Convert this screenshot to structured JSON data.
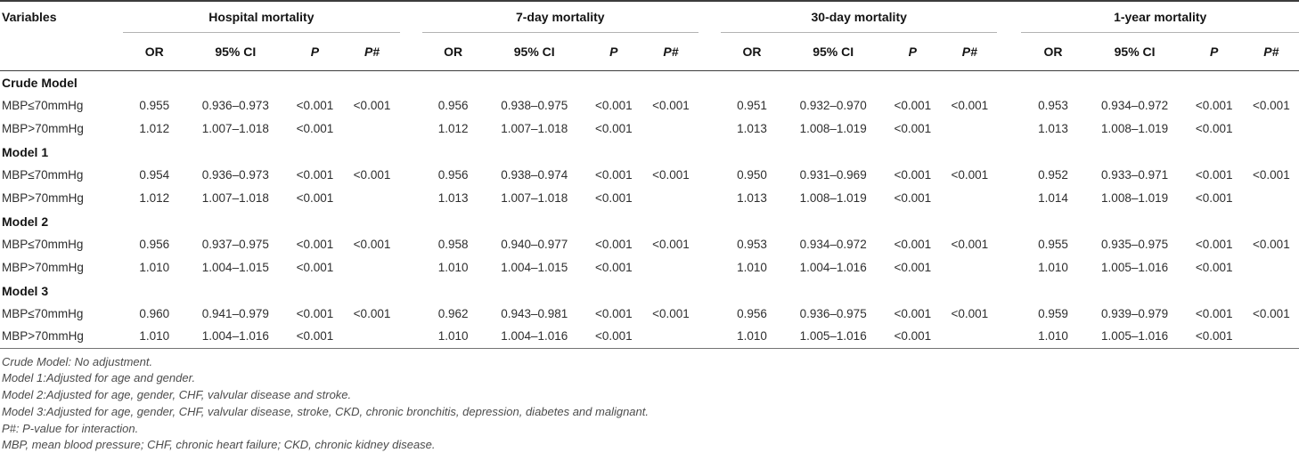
{
  "colors": {
    "rule_top": "#3c3c3c",
    "rule_header": "#3c3c3c",
    "rule_group_underline": "#b3b3b3",
    "rule_bottom": "#737373",
    "text": "#2e2e2e",
    "footnote_text": "#4c4c4c"
  },
  "table": {
    "variables_header": "Variables",
    "groups": [
      {
        "label": "Hospital mortality"
      },
      {
        "label": "7-day mortality"
      },
      {
        "label": "30-day mortality"
      },
      {
        "label": "1-year mortality"
      }
    ],
    "subheaders": [
      "OR",
      "95% CI",
      "P",
      "P#"
    ],
    "sections": [
      {
        "label": "Crude Model",
        "rows": [
          {
            "variable": "MBP≤70mmHg",
            "cells": [
              [
                "0.955",
                "0.936–0.973",
                "<0.001",
                "<0.001"
              ],
              [
                "0.956",
                "0.938–0.975",
                "<0.001",
                "<0.001"
              ],
              [
                "0.951",
                "0.932–0.970",
                "<0.001",
                "<0.001"
              ],
              [
                "0.953",
                "0.934–0.972",
                "<0.001",
                "<0.001"
              ]
            ]
          },
          {
            "variable": "MBP>70mmHg",
            "cells": [
              [
                "1.012",
                "1.007–1.018",
                "<0.001",
                ""
              ],
              [
                "1.012",
                "1.007–1.018",
                "<0.001",
                ""
              ],
              [
                "1.013",
                "1.008–1.019",
                "<0.001",
                ""
              ],
              [
                "1.013",
                "1.008–1.019",
                "<0.001",
                ""
              ]
            ]
          }
        ]
      },
      {
        "label": "Model 1",
        "rows": [
          {
            "variable": "MBP≤70mmHg",
            "cells": [
              [
                "0.954",
                "0.936–0.973",
                "<0.001",
                "<0.001"
              ],
              [
                "0.956",
                "0.938–0.974",
                "<0.001",
                "<0.001"
              ],
              [
                "0.950",
                "0.931–0.969",
                "<0.001",
                "<0.001"
              ],
              [
                "0.952",
                "0.933–0.971",
                "<0.001",
                "<0.001"
              ]
            ]
          },
          {
            "variable": "MBP>70mmHg",
            "cells": [
              [
                "1.012",
                "1.007–1.018",
                "<0.001",
                ""
              ],
              [
                "1.013",
                "1.007–1.018",
                "<0.001",
                ""
              ],
              [
                "1.013",
                "1.008–1.019",
                "<0.001",
                ""
              ],
              [
                "1.014",
                "1.008–1.019",
                "<0.001",
                ""
              ]
            ]
          }
        ]
      },
      {
        "label": "Model 2",
        "rows": [
          {
            "variable": "MBP≤70mmHg",
            "cells": [
              [
                "0.956",
                "0.937–0.975",
                "<0.001",
                "<0.001"
              ],
              [
                "0.958",
                "0.940–0.977",
                "<0.001",
                "<0.001"
              ],
              [
                "0.953",
                "0.934–0.972",
                "<0.001",
                "<0.001"
              ],
              [
                "0.955",
                "0.935–0.975",
                "<0.001",
                "<0.001"
              ]
            ]
          },
          {
            "variable": "MBP>70mmHg",
            "cells": [
              [
                "1.010",
                "1.004–1.015",
                "<0.001",
                ""
              ],
              [
                "1.010",
                "1.004–1.015",
                "<0.001",
                ""
              ],
              [
                "1.010",
                "1.004–1.016",
                "<0.001",
                ""
              ],
              [
                "1.010",
                "1.005–1.016",
                "<0.001",
                ""
              ]
            ]
          }
        ]
      },
      {
        "label": "Model 3",
        "rows": [
          {
            "variable": "MBP≤70mmHg",
            "cells": [
              [
                "0.960",
                "0.941–0.979",
                "<0.001",
                "<0.001"
              ],
              [
                "0.962",
                "0.943–0.981",
                "<0.001",
                "<0.001"
              ],
              [
                "0.956",
                "0.936–0.975",
                "<0.001",
                "<0.001"
              ],
              [
                "0.959",
                "0.939–0.979",
                "<0.001",
                "<0.001"
              ]
            ]
          },
          {
            "variable": "MBP>70mmHg",
            "cells": [
              [
                "1.010",
                "1.004–1.016",
                "<0.001",
                ""
              ],
              [
                "1.010",
                "1.004–1.016",
                "<0.001",
                ""
              ],
              [
                "1.010",
                "1.005–1.016",
                "<0.001",
                ""
              ],
              [
                "1.010",
                "1.005–1.016",
                "<0.001",
                ""
              ]
            ]
          }
        ]
      }
    ],
    "footnotes": [
      "Crude Model: No adjustment.",
      "Model 1:Adjusted for age and gender.",
      "Model 2:Adjusted for age, gender, CHF, valvular disease and stroke.",
      "Model 3:Adjusted for age, gender, CHF, valvular disease, stroke, CKD, chronic bronchitis, depression, diabetes and malignant.",
      "P#: P-value for interaction.",
      "MBP, mean blood pressure; CHF, chronic heart failure; CKD, chronic kidney disease."
    ]
  }
}
